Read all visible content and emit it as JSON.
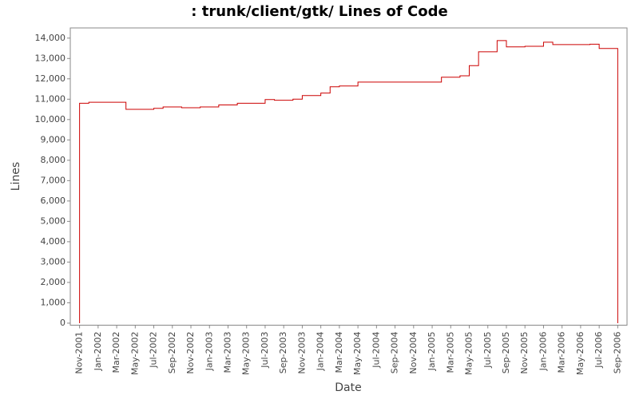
{
  "chart_data": {
    "type": "line",
    "title": ": trunk/client/gtk/ Lines of Code",
    "x_label": "Date",
    "y_label": "Lines",
    "x": [
      "2001-11",
      "2001-11",
      "2001-12",
      "2002-04",
      "2002-07",
      "2002-08",
      "2002-10",
      "2002-12",
      "2003-02",
      "2003-04",
      "2003-07",
      "2003-08",
      "2003-10",
      "2003-11",
      "2004-01",
      "2004-02",
      "2004-03",
      "2004-05",
      "2005-02",
      "2005-04",
      "2005-05",
      "2005-06",
      "2005-08",
      "2005-09",
      "2005-11",
      "2006-01",
      "2006-02",
      "2006-06",
      "2006-07",
      "2006-09"
    ],
    "series": [
      {
        "name": "Lines",
        "color": "#cc0000",
        "values": [
          0,
          10800,
          10850,
          10500,
          10550,
          10620,
          10580,
          10620,
          10720,
          10800,
          10980,
          10950,
          11000,
          11180,
          11300,
          11610,
          11650,
          11840,
          12080,
          12150,
          12650,
          13330,
          13880,
          13570,
          13600,
          13800,
          13680,
          13700,
          13490,
          0
        ]
      }
    ],
    "step": true,
    "xlim": [
      "2001-10",
      "2006-10"
    ],
    "xticks": [
      {
        "value": "2001-11",
        "label": "Nov-2001"
      },
      {
        "value": "2002-01",
        "label": "Jan-2002"
      },
      {
        "value": "2002-03",
        "label": "Mar-2002"
      },
      {
        "value": "2002-05",
        "label": "May-2002"
      },
      {
        "value": "2002-07",
        "label": "Jul-2002"
      },
      {
        "value": "2002-09",
        "label": "Sep-2002"
      },
      {
        "value": "2002-11",
        "label": "Nov-2002"
      },
      {
        "value": "2003-01",
        "label": "Jan-2003"
      },
      {
        "value": "2003-03",
        "label": "Mar-2003"
      },
      {
        "value": "2003-05",
        "label": "May-2003"
      },
      {
        "value": "2003-07",
        "label": "Jul-2003"
      },
      {
        "value": "2003-09",
        "label": "Sep-2003"
      },
      {
        "value": "2003-11",
        "label": "Nov-2003"
      },
      {
        "value": "2004-01",
        "label": "Jan-2004"
      },
      {
        "value": "2004-03",
        "label": "Mar-2004"
      },
      {
        "value": "2004-05",
        "label": "May-2004"
      },
      {
        "value": "2004-07",
        "label": "Jul-2004"
      },
      {
        "value": "2004-09",
        "label": "Sep-2004"
      },
      {
        "value": "2004-11",
        "label": "Nov-2004"
      },
      {
        "value": "2005-01",
        "label": "Jan-2005"
      },
      {
        "value": "2005-03",
        "label": "Mar-2005"
      },
      {
        "value": "2005-05",
        "label": "May-2005"
      },
      {
        "value": "2005-07",
        "label": "Jul-2005"
      },
      {
        "value": "2005-09",
        "label": "Sep-2005"
      },
      {
        "value": "2005-11",
        "label": "Nov-2005"
      },
      {
        "value": "2006-01",
        "label": "Jan-2006"
      },
      {
        "value": "2006-03",
        "label": "Mar-2006"
      },
      {
        "value": "2006-05",
        "label": "May-2006"
      },
      {
        "value": "2006-07",
        "label": "Jul-2006"
      },
      {
        "value": "2006-09",
        "label": "Sep-2006"
      }
    ],
    "ylim": [
      -100,
      14500
    ],
    "yticks": [
      0,
      {
        "value": 1000,
        "label": "1,000"
      },
      {
        "value": 2000,
        "label": "2,000"
      },
      {
        "value": 3000,
        "label": "3,000"
      },
      {
        "value": 4000,
        "label": "4,000"
      },
      {
        "value": 5000,
        "label": "5,000"
      },
      {
        "value": 6000,
        "label": "6,000"
      },
      {
        "value": 7000,
        "label": "7,000"
      },
      {
        "value": 8000,
        "label": "8,000"
      },
      {
        "value": 9000,
        "label": "9,000"
      },
      {
        "value": 10000,
        "label": "10,000"
      },
      {
        "value": 11000,
        "label": "11,000"
      },
      {
        "value": 12000,
        "label": "12,000"
      },
      {
        "value": 13000,
        "label": "13,000"
      },
      {
        "value": 14000,
        "label": "14,000"
      }
    ],
    "grid": false
  }
}
